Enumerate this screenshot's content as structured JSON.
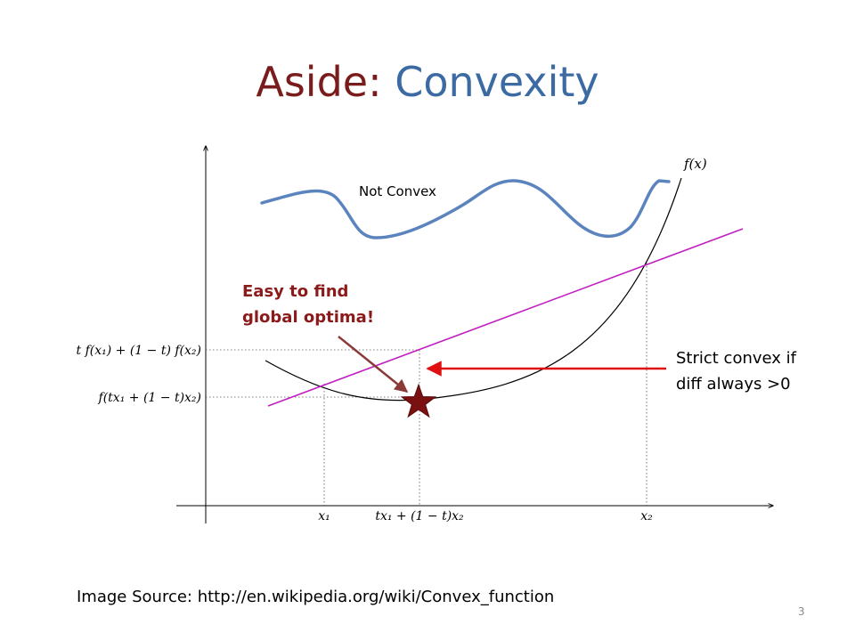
{
  "slide": {
    "title_prefix": "Aside: ",
    "title_main": "Convexity",
    "source": "Image Source: http://en.wikipedia.org/wiki/Convex_function",
    "page_number": "3"
  },
  "diagram": {
    "function_label": "f(x)",
    "not_convex_label": "Not Convex",
    "easy_line1": "Easy to find",
    "easy_line2": "global optima!",
    "strict_line1": "Strict convex if",
    "strict_line2": "diff always >0",
    "x_labels": {
      "x1": "x₁",
      "mid": "tx₁ + (1 − t)x₂",
      "x2": "x₂"
    },
    "y_labels": {
      "upper": "t f(x₁) + (1 − t) f(x₂)",
      "lower": "f(tx₁ + (1 − t)x₂)"
    },
    "colors": {
      "title_dark": "#7b1c1c",
      "title_blue": "#3c6aa3",
      "nonconvex_curve": "#5b84be",
      "chord": "#c020c0",
      "red_arrow": "#e01010",
      "brown_arrow": "#8b3a3a",
      "star": "#7a1010"
    }
  }
}
